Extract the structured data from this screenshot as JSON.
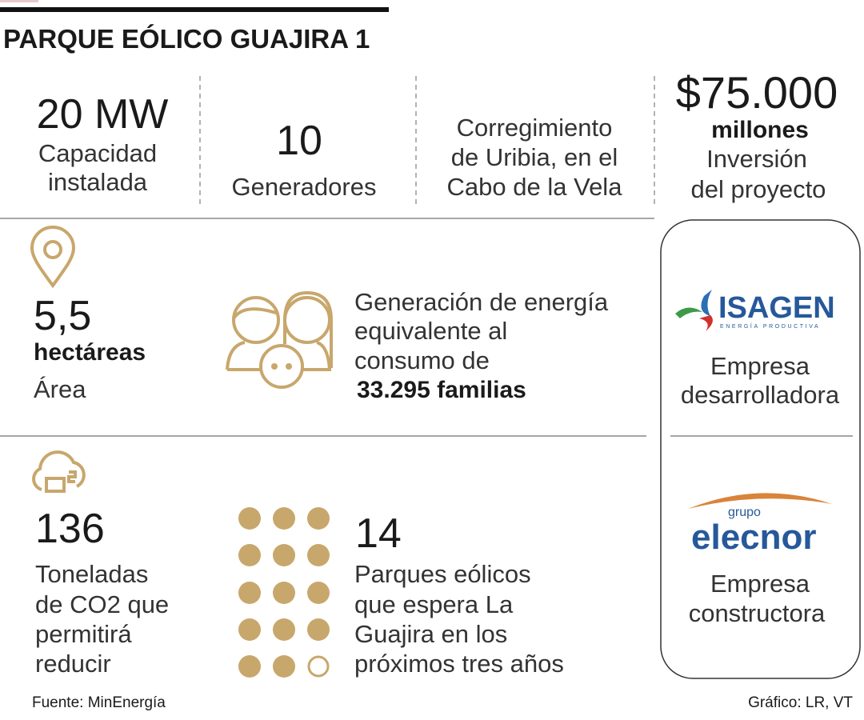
{
  "header": {
    "title": "PARQUE EÓLICO GUAJIRA 1"
  },
  "top": [
    {
      "value": "20 MW",
      "lines": [
        "Capacidad",
        "instalada"
      ]
    },
    {
      "value": "10",
      "lines": [
        "Generadores"
      ]
    },
    {
      "lines": [
        "Corregimiento",
        "de Uribia, en el",
        "Cabo de la Vela"
      ]
    },
    {
      "value": "$75.000",
      "unit": "millones",
      "lines": [
        "Inversión",
        "del proyecto"
      ]
    }
  ],
  "area": {
    "value": "5,5",
    "unit": "hectáreas",
    "label": "Área"
  },
  "families": {
    "lines": [
      "Generación de energía",
      "equivalente al",
      "consumo de"
    ],
    "highlight": "33.295 familias"
  },
  "co2": {
    "value": "136",
    "lines": [
      "Toneladas",
      "de CO2 que",
      "permitirá",
      "reducir"
    ]
  },
  "parks": {
    "value": "14",
    "lines": [
      "Parques eólicos",
      "que espera La",
      "Guajira en los",
      "próximos tres años"
    ]
  },
  "developer": {
    "logo": {
      "name": "ISAGEN",
      "tagline": "ENERGÍA PRODUCTIVA"
    },
    "lines": [
      "Empresa",
      "desarrolladora"
    ]
  },
  "builder": {
    "logo": {
      "prefix": "grupo",
      "name": "elecnor"
    },
    "lines": [
      "Empresa",
      "constructora"
    ]
  },
  "footer": {
    "source": "Fuente: MinEnergía",
    "credit": "Gráfico: LR, VT"
  }
}
